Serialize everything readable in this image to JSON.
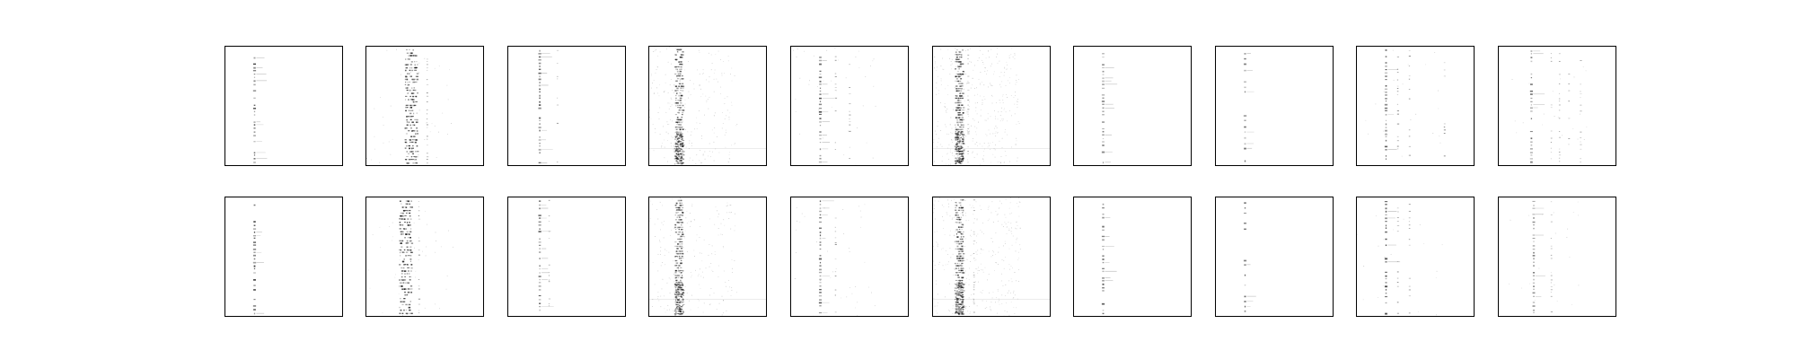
{
  "figure": {
    "background": "#ffffff",
    "frame_color": "#000000",
    "ink_color": "#000000",
    "rows": 2,
    "cols": 10
  },
  "chart_data": {
    "type": "heatmap",
    "title": "",
    "xlabel": "",
    "ylabel": "",
    "colormap": "gray_r",
    "axes_ticks": false,
    "grid": false,
    "legend": "none",
    "panels": [
      {
        "row": 0,
        "col": 0,
        "pattern": "sparse-stripe",
        "stripe_x": 0.25,
        "rows_active": 34,
        "density": 0.35,
        "intensity": 0.75,
        "secondary_x": [],
        "noise": 0.0
      },
      {
        "row": 0,
        "col": 1,
        "pattern": "dense-band",
        "stripe_x": 0.38,
        "rows_active": 40,
        "density": 0.8,
        "intensity": 0.7,
        "secondary_x": [
          0.52
        ],
        "noise": 0.01
      },
      {
        "row": 0,
        "col": 2,
        "pattern": "sparse-stripe",
        "stripe_x": 0.27,
        "rows_active": 36,
        "density": 0.45,
        "intensity": 0.65,
        "secondary_x": [
          0.42
        ],
        "noise": 0.0
      },
      {
        "row": 0,
        "col": 3,
        "pattern": "noisy-band",
        "stripe_x": 0.25,
        "rows_active": 48,
        "density": 0.9,
        "intensity": 0.55,
        "secondary_x": [],
        "noise": 0.06
      },
      {
        "row": 0,
        "col": 4,
        "pattern": "multi-stripe",
        "stripe_x": 0.25,
        "rows_active": 34,
        "density": 0.55,
        "intensity": 0.7,
        "secondary_x": [
          0.38,
          0.5
        ],
        "noise": 0.01
      },
      {
        "row": 0,
        "col": 5,
        "pattern": "noisy-band",
        "stripe_x": 0.22,
        "rows_active": 48,
        "density": 0.95,
        "intensity": 0.6,
        "secondary_x": [
          0.3
        ],
        "noise": 0.09
      },
      {
        "row": 0,
        "col": 6,
        "pattern": "sparse-stripe",
        "stripe_x": 0.25,
        "rows_active": 34,
        "density": 0.4,
        "intensity": 0.55,
        "secondary_x": [],
        "noise": 0.0
      },
      {
        "row": 0,
        "col": 7,
        "pattern": "sparse-stripe",
        "stripe_x": 0.25,
        "rows_active": 20,
        "density": 0.3,
        "intensity": 0.6,
        "secondary_x": [],
        "noise": 0.0
      },
      {
        "row": 0,
        "col": 8,
        "pattern": "multi-stripe",
        "stripe_x": 0.25,
        "rows_active": 36,
        "density": 0.55,
        "intensity": 0.75,
        "secondary_x": [
          0.35,
          0.45,
          0.75
        ],
        "noise": 0.005
      },
      {
        "row": 0,
        "col": 9,
        "pattern": "multi-stripe",
        "stripe_x": 0.28,
        "rows_active": 34,
        "density": 0.55,
        "intensity": 0.6,
        "secondary_x": [
          0.45,
          0.52,
          0.6,
          0.7
        ],
        "noise": 0.005
      },
      {
        "row": 1,
        "col": 0,
        "pattern": "sparse-stripe",
        "stripe_x": 0.25,
        "rows_active": 34,
        "density": 0.35,
        "intensity": 0.8,
        "secondary_x": [],
        "noise": 0.0
      },
      {
        "row": 1,
        "col": 1,
        "pattern": "dense-band",
        "stripe_x": 0.33,
        "rows_active": 38,
        "density": 0.8,
        "intensity": 0.75,
        "secondary_x": [
          0.45
        ],
        "noise": 0.01
      },
      {
        "row": 1,
        "col": 2,
        "pattern": "sparse-stripe",
        "stripe_x": 0.27,
        "rows_active": 34,
        "density": 0.45,
        "intensity": 0.65,
        "secondary_x": [
          0.35
        ],
        "noise": 0.0
      },
      {
        "row": 1,
        "col": 3,
        "pattern": "noisy-band",
        "stripe_x": 0.25,
        "rows_active": 48,
        "density": 0.9,
        "intensity": 0.55,
        "secondary_x": [],
        "noise": 0.05
      },
      {
        "row": 1,
        "col": 4,
        "pattern": "multi-stripe",
        "stripe_x": 0.25,
        "rows_active": 34,
        "density": 0.55,
        "intensity": 0.7,
        "secondary_x": [
          0.38
        ],
        "noise": 0.01
      },
      {
        "row": 1,
        "col": 5,
        "pattern": "noisy-band",
        "stripe_x": 0.22,
        "rows_active": 48,
        "density": 0.95,
        "intensity": 0.6,
        "secondary_x": [
          0.35
        ],
        "noise": 0.08
      },
      {
        "row": 1,
        "col": 6,
        "pattern": "sparse-stripe",
        "stripe_x": 0.25,
        "rows_active": 36,
        "density": 0.45,
        "intensity": 0.65,
        "secondary_x": [],
        "noise": 0.0
      },
      {
        "row": 1,
        "col": 7,
        "pattern": "sparse-stripe",
        "stripe_x": 0.25,
        "rows_active": 22,
        "density": 0.35,
        "intensity": 0.6,
        "secondary_x": [],
        "noise": 0.0
      },
      {
        "row": 1,
        "col": 8,
        "pattern": "multi-stripe",
        "stripe_x": 0.25,
        "rows_active": 34,
        "density": 0.55,
        "intensity": 0.75,
        "secondary_x": [
          0.35,
          0.45
        ],
        "noise": 0.005
      },
      {
        "row": 1,
        "col": 9,
        "pattern": "multi-stripe",
        "stripe_x": 0.3,
        "rows_active": 34,
        "density": 0.5,
        "intensity": 0.6,
        "secondary_x": [
          0.45
        ],
        "noise": 0.005
      }
    ]
  }
}
